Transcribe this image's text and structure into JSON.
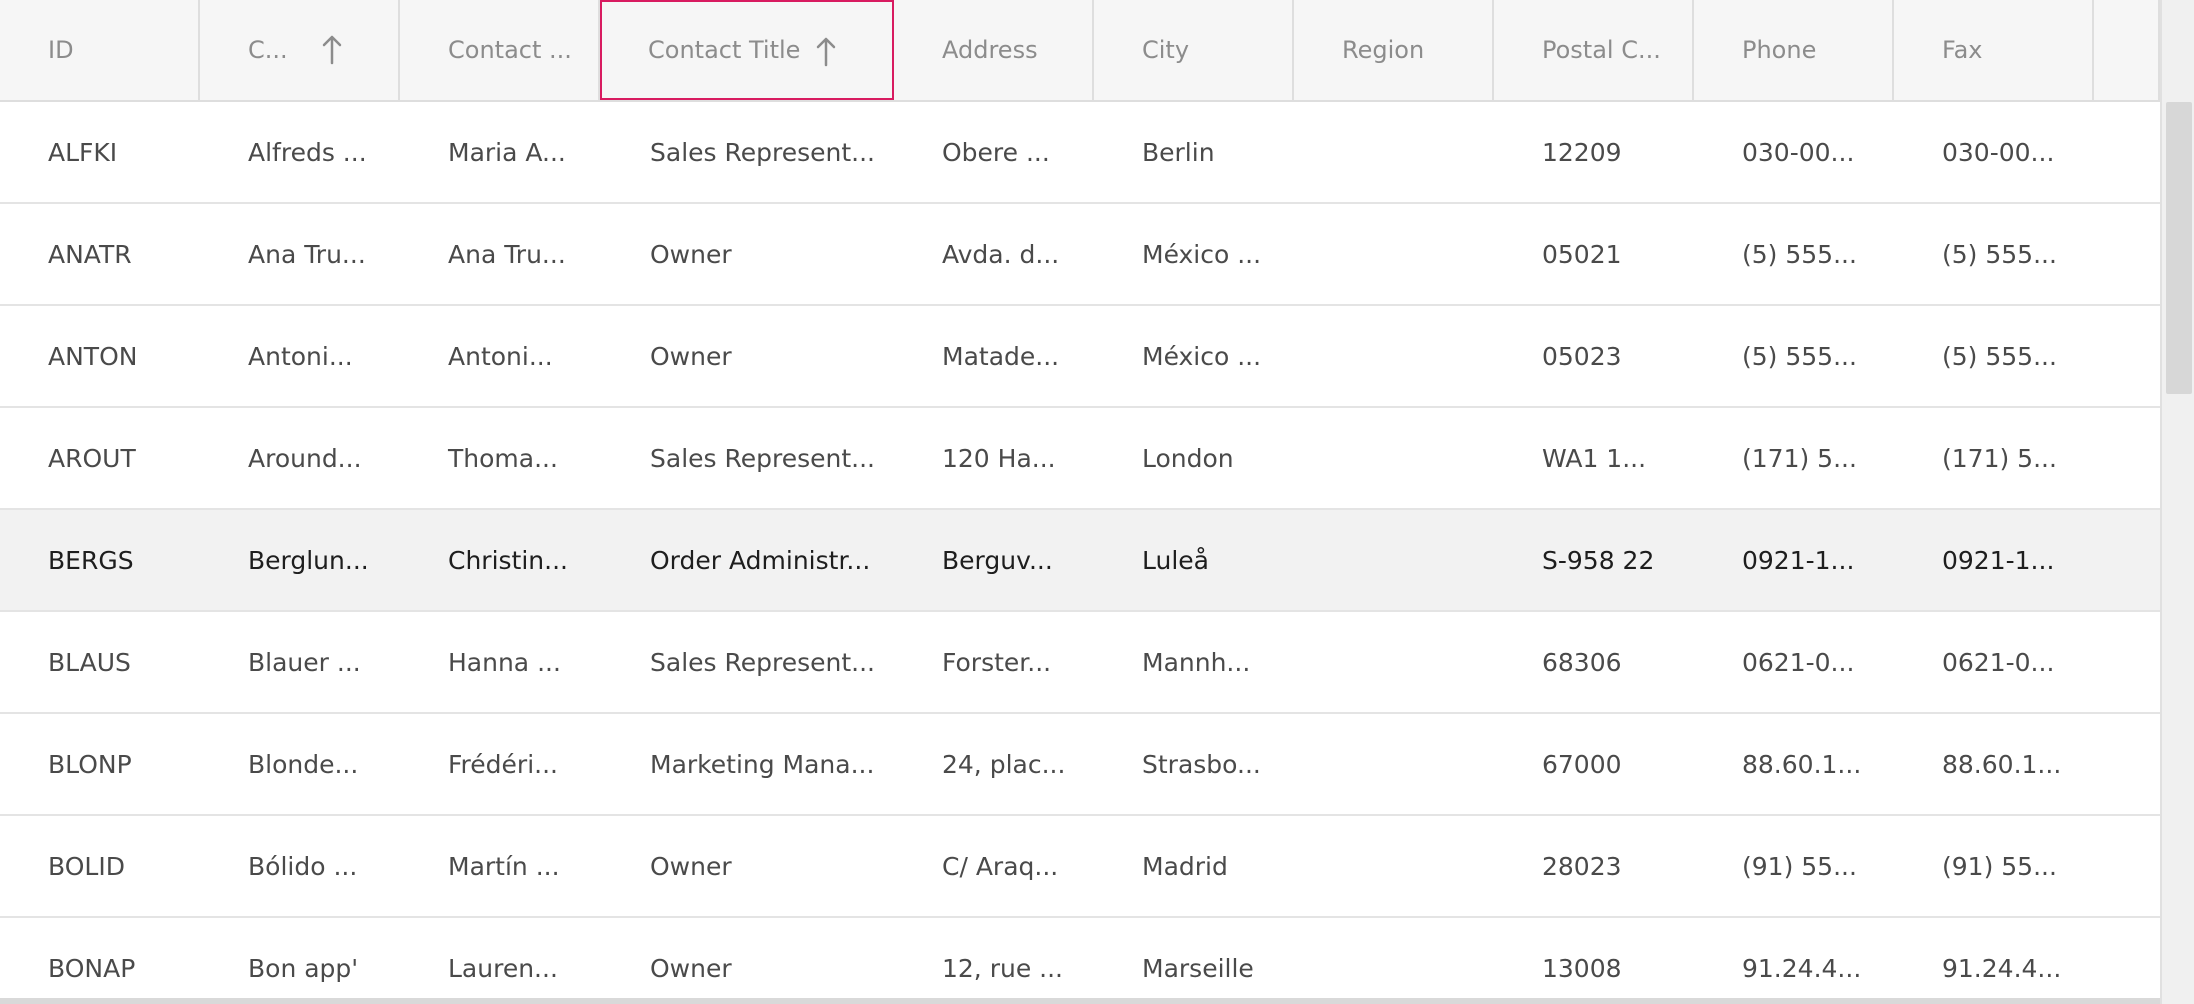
{
  "columns": [
    {
      "label": "ID",
      "sorted": false
    },
    {
      "label": "C...",
      "sorted": true
    },
    {
      "label": "Contact ...",
      "sorted": false
    },
    {
      "label": "Contact Title",
      "sorted": true
    },
    {
      "label": "Address",
      "sorted": false
    },
    {
      "label": "City",
      "sorted": false
    },
    {
      "label": "Region",
      "sorted": false
    },
    {
      "label": "Postal C...",
      "sorted": false
    },
    {
      "label": "Phone",
      "sorted": false
    },
    {
      "label": "Fax",
      "sorted": false
    }
  ],
  "rows": [
    {
      "id": "ALFKI",
      "company": "Alfreds ...",
      "contact": "Maria A...",
      "title": "Sales Represent...",
      "address": "Obere ...",
      "city": "Berlin",
      "region": "",
      "postal": "12209",
      "phone": "030-00...",
      "fax": "030-00..."
    },
    {
      "id": "ANATR",
      "company": "Ana Tru...",
      "contact": "Ana Tru...",
      "title": "Owner",
      "address": "Avda. d...",
      "city": "México ...",
      "region": "",
      "postal": "05021",
      "phone": "(5) 555...",
      "fax": "(5) 555..."
    },
    {
      "id": "ANTON",
      "company": "Antoni...",
      "contact": "Antoni...",
      "title": "Owner",
      "address": "Matade...",
      "city": "México ...",
      "region": "",
      "postal": "05023",
      "phone": "(5) 555...",
      "fax": "(5) 555..."
    },
    {
      "id": "AROUT",
      "company": "Around...",
      "contact": "Thoma...",
      "title": "Sales Represent...",
      "address": "120 Ha...",
      "city": "London",
      "region": "",
      "postal": "WA1 1...",
      "phone": "(171) 5...",
      "fax": "(171) 5..."
    },
    {
      "id": "BERGS",
      "company": "Berglun...",
      "contact": "Christin...",
      "title": "Order Administr...",
      "address": "Berguv...",
      "city": "Luleå",
      "region": "",
      "postal": "S-958 22",
      "phone": "0921-1...",
      "fax": "0921-1..."
    },
    {
      "id": "BLAUS",
      "company": "Blauer ...",
      "contact": "Hanna ...",
      "title": "Sales Represent...",
      "address": "Forster...",
      "city": "Mannh...",
      "region": "",
      "postal": "68306",
      "phone": "0621-0...",
      "fax": "0621-0..."
    },
    {
      "id": "BLONP",
      "company": "Blonde...",
      "contact": "Frédéri...",
      "title": "Marketing Mana...",
      "address": "24, plac...",
      "city": "Strasbo...",
      "region": "",
      "postal": "67000",
      "phone": "88.60.1...",
      "fax": "88.60.1..."
    },
    {
      "id": "BOLID",
      "company": "Bólido ...",
      "contact": "Martín ...",
      "title": "Owner",
      "address": "C/ Araq...",
      "city": "Madrid",
      "region": "",
      "postal": "28023",
      "phone": "(91) 55...",
      "fax": "(91) 55..."
    },
    {
      "id": "BONAP",
      "company": "Bon app'",
      "contact": "Lauren...",
      "title": "Owner",
      "address": "12, rue ...",
      "city": "Marseille",
      "region": "",
      "postal": "13008",
      "phone": "91.24.4...",
      "fax": "91.24.4..."
    }
  ],
  "selected_row_index": 4,
  "colors": {
    "accent": "#d81b60",
    "header_bg": "#f6f6f6",
    "selected_row_bg": "#f2f2f2"
  },
  "icons": {
    "sort": "arrow-up-icon"
  }
}
